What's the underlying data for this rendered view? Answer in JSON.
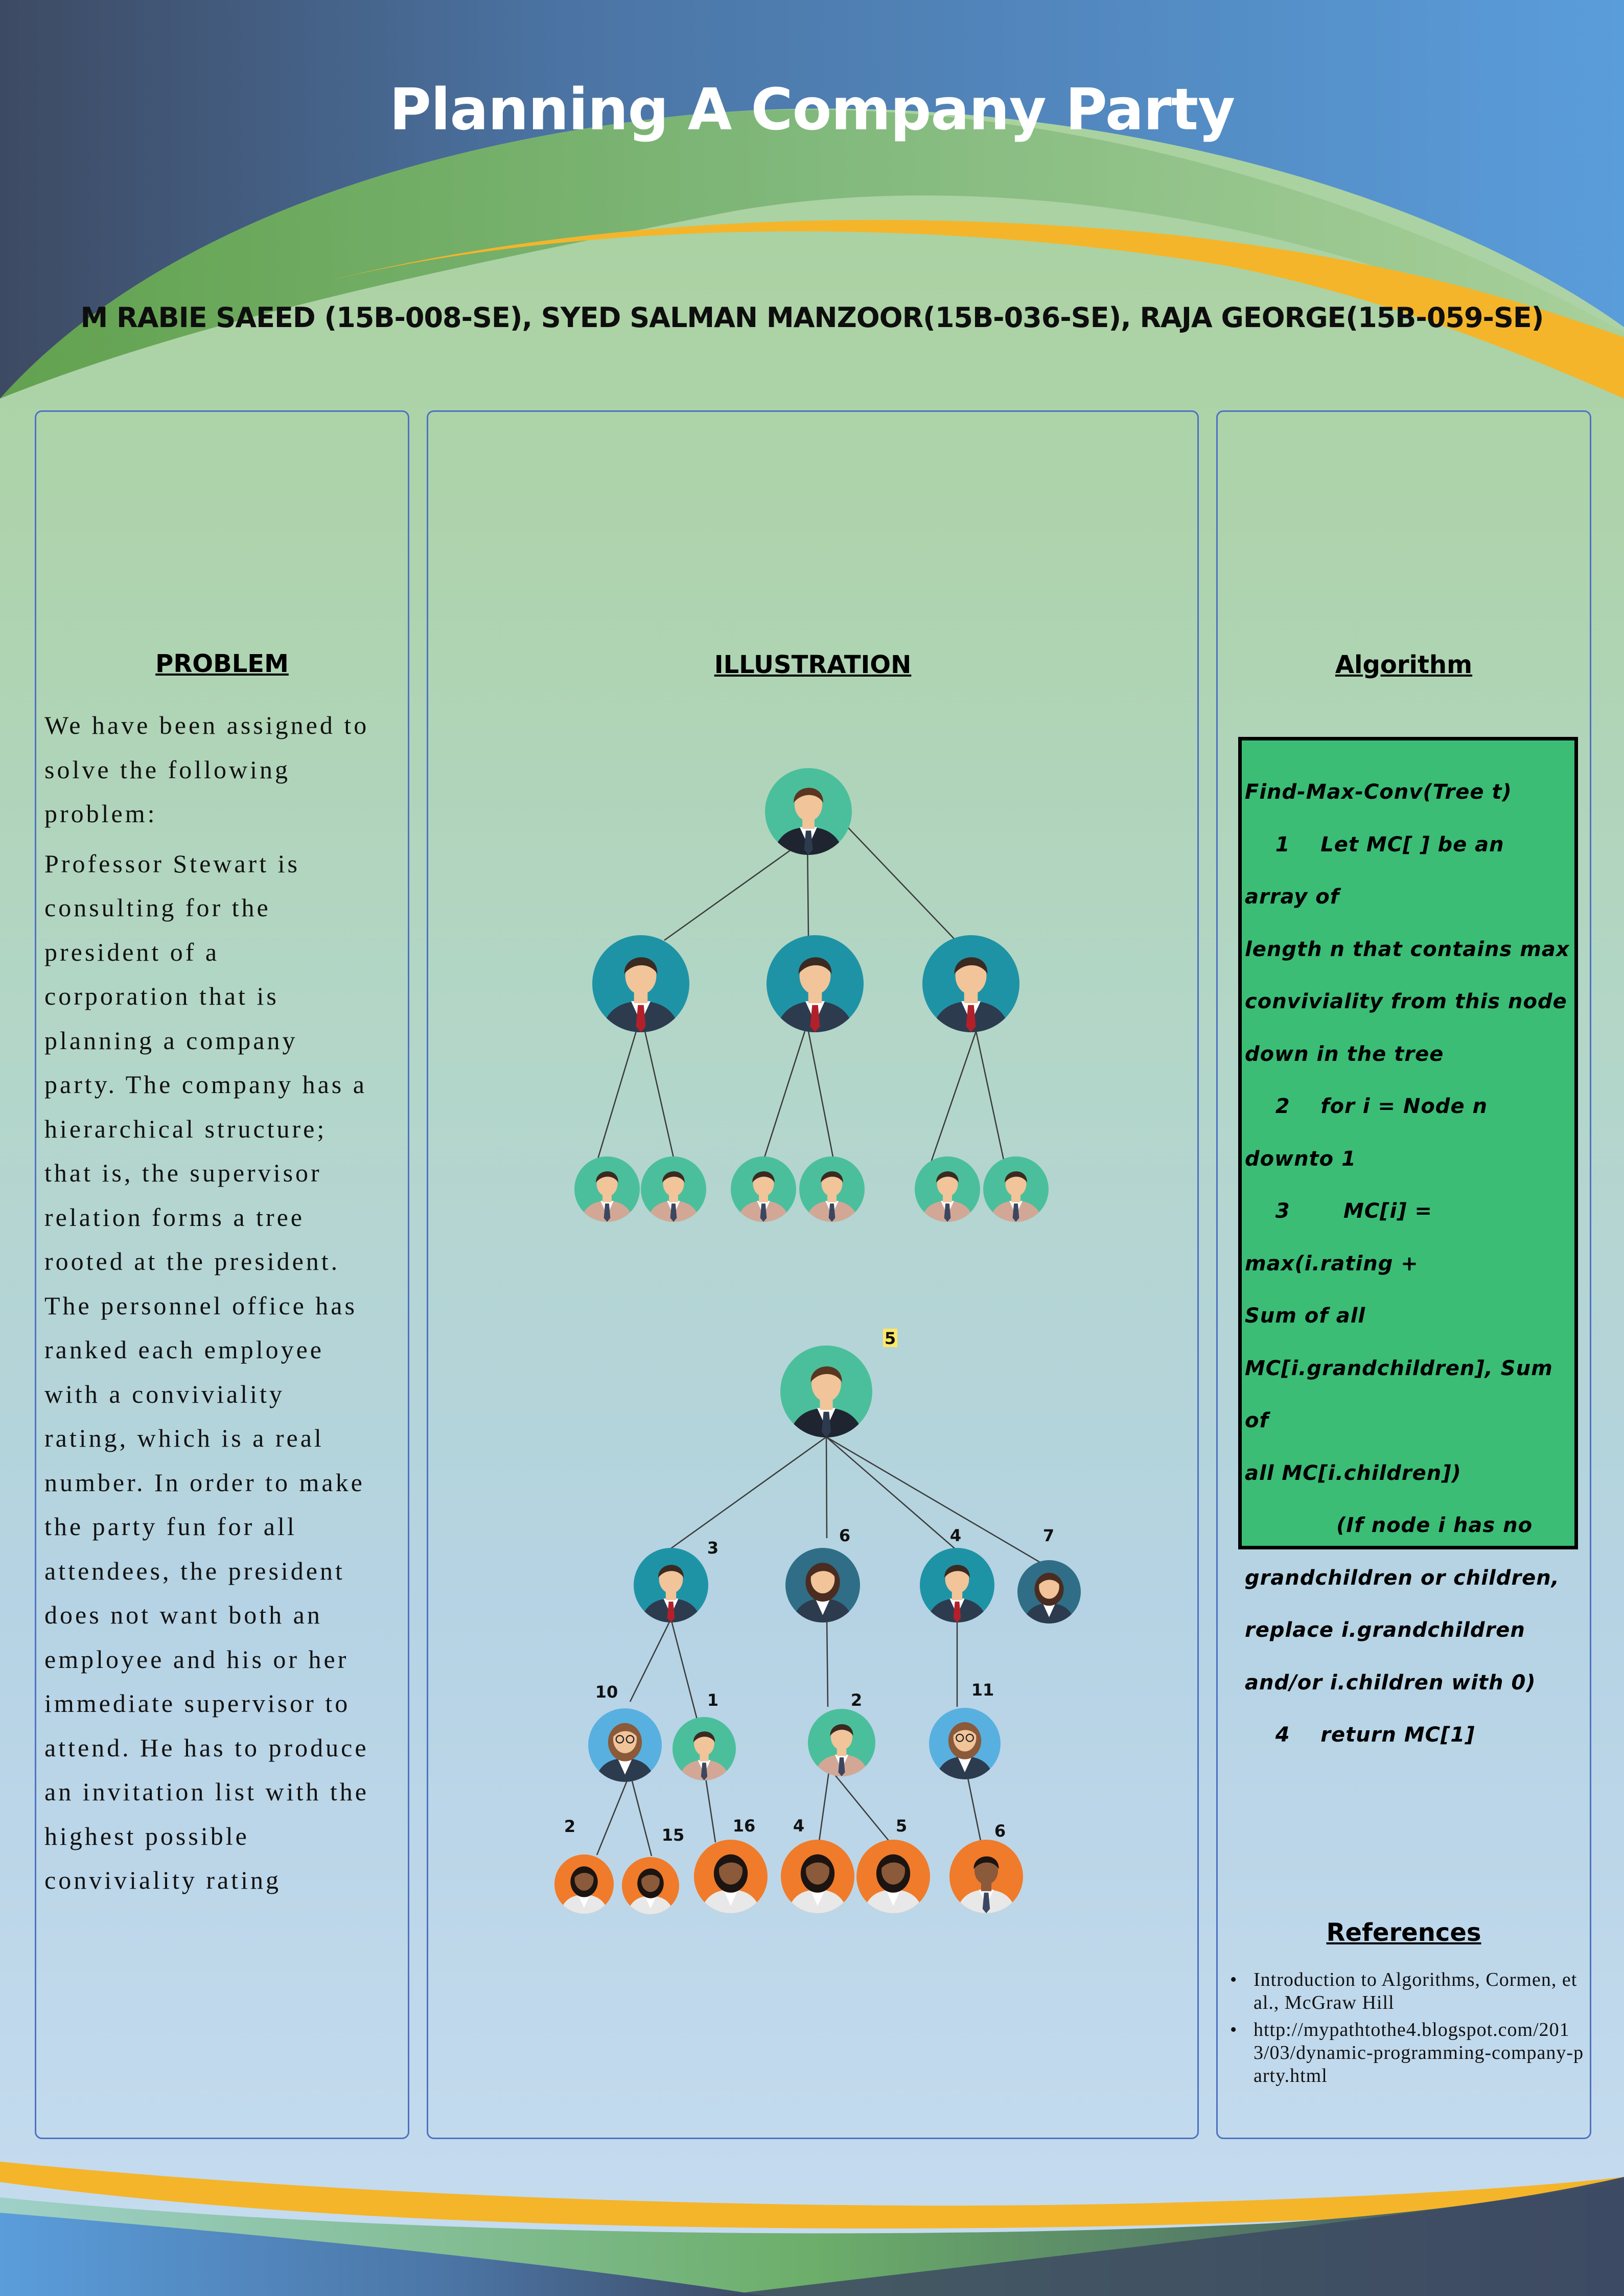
{
  "header": {
    "title": "Planning A Company Party",
    "authors": "M RABIE SAEED (15B-008-SE), SYED SALMAN MANZOOR(15B-036-SE), RAJA GEORGE(15B-059-SE)"
  },
  "colors": {
    "top_blue": "#5a9ad6",
    "dark_navy": "#3e4e68",
    "green_band": "#6cae55",
    "gold_band": "#f4b52a",
    "panel_border": "#4f73c1",
    "algo_green": "#3bbd76"
  },
  "problem": {
    "heading": "PROBLEM",
    "lines": [
      "We have been assigned to",
      "solve the following",
      "problem:",
      "Professor Stewart is",
      "consulting for the",
      "president of a",
      "corporation that is",
      "planning a company",
      "party. The company has a",
      "hierarchical structure;",
      "that is, the supervisor",
      "relation forms a tree",
      "rooted at the president.",
      "The personnel office has",
      "ranked each employee",
      "with a conviviality",
      "rating, which is a real",
      "number. In order to make",
      "the party fun for all",
      "attendees, the president",
      "does not want both an",
      "employee and his or her",
      "immediate supervisor to",
      "attend. He has to produce",
      "an invitation list with the",
      "highest possible",
      "conviviality rating"
    ]
  },
  "illustration": {
    "heading": "ILLUSTRATION",
    "tree2_ratings": {
      "root": "5",
      "level1": [
        "3",
        "6",
        "4",
        "7"
      ],
      "level2": [
        "10",
        "1",
        "2",
        "11"
      ],
      "level3": [
        "2",
        "15",
        "16",
        "4",
        "5",
        "6"
      ]
    }
  },
  "algorithm": {
    "heading": "Algorithm",
    "lines": [
      "Find-Max-Conv(Tree t)",
      "    1    Let MC[ ] be an array of",
      "length n that contains max",
      "conviviality from this node",
      "down in the tree",
      "    2    for i = Node n downto 1",
      "    3       MC[i] = max(i.rating +",
      "Sum of all",
      "MC[i.grandchildren], Sum of",
      "all MC[i.children])",
      "            (If node i has no",
      "grandchildren or children,",
      "replace i.grandchildren",
      "and/or i.children with 0)",
      "    4    return MC[1]"
    ]
  },
  "references": {
    "heading": "References",
    "items": [
      "Introduction to Algorithms, Cormen, et al., McGraw Hill",
      "http://mypathtothe4.blogspot.com/2013/03/dynamic-programming-company-party.html"
    ]
  }
}
